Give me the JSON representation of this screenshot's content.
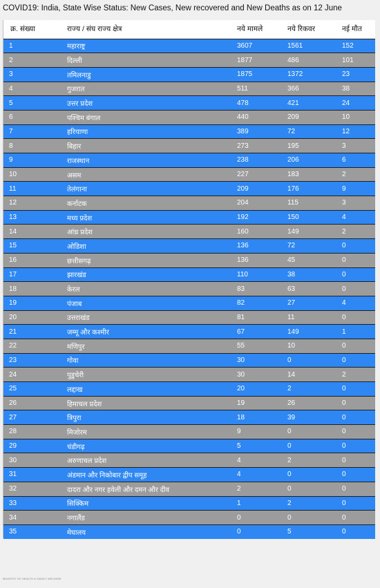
{
  "title": "COVID19: India, State Wise Status: New Cases, New recovered and New Deaths as on 12 June",
  "headers": {
    "sno": "क्र. संख्या",
    "state": "राज्य / संघ राज्य क्षेत्र",
    "new_cases": "नये मामले",
    "new_recovered": "नये रिकवर",
    "new_deaths": "नई मौत"
  },
  "rows": [
    {
      "sno": "1",
      "state": "महाराष्ट्र",
      "cases": "3607",
      "recovered": "1561",
      "deaths": "152"
    },
    {
      "sno": "2",
      "state": "दिल्ली",
      "cases": "1877",
      "recovered": "486",
      "deaths": "101"
    },
    {
      "sno": "3",
      "state": "तमिलनाडु",
      "cases": "1875",
      "recovered": "1372",
      "deaths": "23"
    },
    {
      "sno": "4",
      "state": "गुजरात",
      "cases": "511",
      "recovered": "366",
      "deaths": "38"
    },
    {
      "sno": "5",
      "state": "उत्तर प्रदेश",
      "cases": "478",
      "recovered": "421",
      "deaths": "24"
    },
    {
      "sno": "6",
      "state": "पश्चिम बंगाल",
      "cases": "440",
      "recovered": "209",
      "deaths": "10"
    },
    {
      "sno": "7",
      "state": "हरियाणा",
      "cases": "389",
      "recovered": "72",
      "deaths": "12"
    },
    {
      "sno": "8",
      "state": "बिहार",
      "cases": "273",
      "recovered": "195",
      "deaths": "3"
    },
    {
      "sno": "9",
      "state": "राजस्थान",
      "cases": "238",
      "recovered": "206",
      "deaths": "6"
    },
    {
      "sno": "10",
      "state": "असम",
      "cases": "227",
      "recovered": "183",
      "deaths": "2"
    },
    {
      "sno": "11",
      "state": "तेलंगाना",
      "cases": "209",
      "recovered": "176",
      "deaths": "9"
    },
    {
      "sno": "12",
      "state": "कर्नाटक",
      "cases": "204",
      "recovered": "115",
      "deaths": "3"
    },
    {
      "sno": "13",
      "state": "मध्य प्रदेश",
      "cases": "192",
      "recovered": "150",
      "deaths": "4"
    },
    {
      "sno": "14",
      "state": "आंध्र प्रदेश",
      "cases": "160",
      "recovered": "149",
      "deaths": "2"
    },
    {
      "sno": "15",
      "state": "ओडिशा",
      "cases": "136",
      "recovered": "72",
      "deaths": "0"
    },
    {
      "sno": "16",
      "state": "छत्तीसगढ़",
      "cases": "136",
      "recovered": "45",
      "deaths": "0"
    },
    {
      "sno": "17",
      "state": "झारखंड",
      "cases": "110",
      "recovered": "38",
      "deaths": "0"
    },
    {
      "sno": "18",
      "state": "केरल",
      "cases": "83",
      "recovered": "63",
      "deaths": "0"
    },
    {
      "sno": "19",
      "state": "पंजाब",
      "cases": "82",
      "recovered": "27",
      "deaths": "4"
    },
    {
      "sno": "20",
      "state": "उत्तराखंड",
      "cases": "81",
      "recovered": "11",
      "deaths": "0"
    },
    {
      "sno": "21",
      "state": "जम्मू और कश्मीर",
      "cases": "67",
      "recovered": "149",
      "deaths": "1"
    },
    {
      "sno": "22",
      "state": "मणिपुर",
      "cases": "55",
      "recovered": "10",
      "deaths": "0"
    },
    {
      "sno": "23",
      "state": "गोवा",
      "cases": "30",
      "recovered": "0",
      "deaths": "0"
    },
    {
      "sno": "24",
      "state": "पुडुचेरी",
      "cases": "30",
      "recovered": "14",
      "deaths": "2"
    },
    {
      "sno": "25",
      "state": "लद्दाख",
      "cases": "20",
      "recovered": "2",
      "deaths": "0"
    },
    {
      "sno": "26",
      "state": "हिमाचल प्रदेश",
      "cases": "19",
      "recovered": "26",
      "deaths": "0"
    },
    {
      "sno": "27",
      "state": "त्रिपुरा",
      "cases": "18",
      "recovered": "39",
      "deaths": "0"
    },
    {
      "sno": "28",
      "state": "मिजोरम",
      "cases": "9",
      "recovered": "0",
      "deaths": "0"
    },
    {
      "sno": "29",
      "state": "चंडीगढ़",
      "cases": "5",
      "recovered": "0",
      "deaths": "0"
    },
    {
      "sno": "30",
      "state": "अरुणाचल प्रदेश",
      "cases": "4",
      "recovered": "2",
      "deaths": "0"
    },
    {
      "sno": "31",
      "state": "अंडमान और निकोबार द्वीप समूह",
      "cases": "4",
      "recovered": "0",
      "deaths": "0"
    },
    {
      "sno": "32",
      "state": "दादरा और नगर हवेली और दमन और दीव",
      "cases": "2",
      "recovered": "0",
      "deaths": "0"
    },
    {
      "sno": "33",
      "state": "सिक्किम",
      "cases": "1",
      "recovered": "2",
      "deaths": "0"
    },
    {
      "sno": "34",
      "state": "नगालैंड",
      "cases": "0",
      "recovered": "0",
      "deaths": "0"
    },
    {
      "sno": "35",
      "state": "मेघालय",
      "cases": "0",
      "recovered": "5",
      "deaths": "0"
    }
  ],
  "footer": "MINISTRY OF HEALTH & FAMILY WELFARE",
  "colors": {
    "row_odd": "#2e87f2",
    "row_even": "#9c9c9c",
    "header_bg": "#ffffff",
    "table_border": "#1f1f1f",
    "page_bg": "#f0f0f0"
  }
}
